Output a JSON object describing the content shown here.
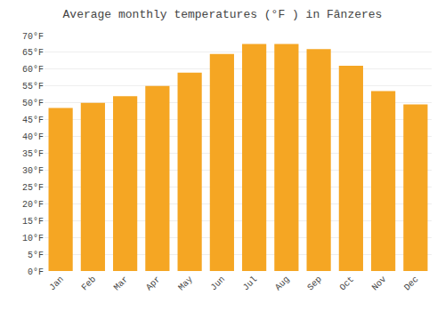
{
  "chart_data": {
    "type": "bar",
    "title": "Average monthly temperatures (°F ) in Fânzeres",
    "categories": [
      "Jan",
      "Feb",
      "Mar",
      "Apr",
      "May",
      "Jun",
      "Jul",
      "Aug",
      "Sep",
      "Oct",
      "Nov",
      "Dec"
    ],
    "values": [
      48.5,
      50.0,
      52.0,
      55.0,
      59.0,
      64.5,
      67.5,
      67.5,
      66.0,
      61.0,
      53.5,
      49.5
    ],
    "color": "#F5A623",
    "ylim": [
      0,
      70
    ],
    "yticks": [
      {
        "value": 0,
        "label": "0°F"
      },
      {
        "value": 5,
        "label": "5°F"
      },
      {
        "value": 10,
        "label": "10°F"
      },
      {
        "value": 15,
        "label": "15°F"
      },
      {
        "value": 20,
        "label": "20°F"
      },
      {
        "value": 25,
        "label": "25°F"
      },
      {
        "value": 30,
        "label": "30°F"
      },
      {
        "value": 35,
        "label": "35°F"
      },
      {
        "value": 40,
        "label": "40°F"
      },
      {
        "value": 45,
        "label": "45°F"
      },
      {
        "value": 50,
        "label": "50°F"
      },
      {
        "value": 55,
        "label": "55°F"
      },
      {
        "value": 60,
        "label": "60°F"
      },
      {
        "value": 65,
        "label": "65°F"
      },
      {
        "value": 70,
        "label": "70°F"
      }
    ],
    "grid": true
  }
}
